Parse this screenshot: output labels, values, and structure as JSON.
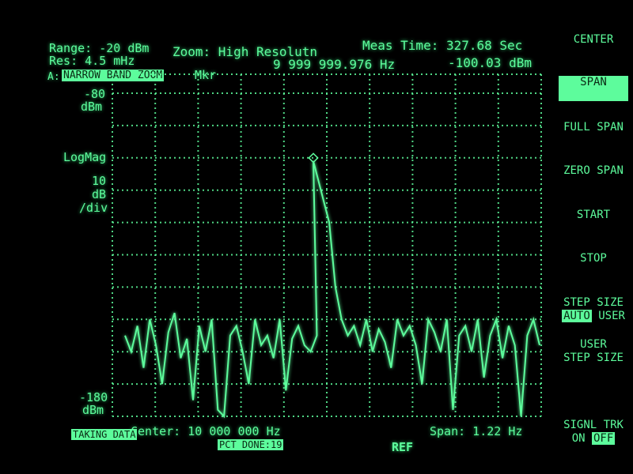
{
  "header": {
    "range": "Range: -20 dBm",
    "res": "Res: 4.5 mHz",
    "zoom": "Zoom: High Resolutn",
    "meas_time": "Meas Time: 327.68 Sec",
    "marker_freq": "9 999 999.976 Hz",
    "marker_level": "-100.03 dBm",
    "trace_prefix": "A:",
    "trace_label": "NARROW BAND ZOOM",
    "mkr_label": "Mkr"
  },
  "yaxis": {
    "top_value": "-80",
    "top_unit": "dBm",
    "scale_type": "LogMag",
    "scale_num": "10",
    "scale_unit": "dB",
    "scale_div": "/div",
    "bottom_value": "-180",
    "bottom_unit": "dBm"
  },
  "footer": {
    "center": "Center: 10 000 000 Hz",
    "span": "Span: 1.22 Hz",
    "status": "TAKING DATA",
    "pct_done": "PCT DONE:19",
    "ref": "REF"
  },
  "softkeys": [
    {
      "label": "CENTER"
    },
    {
      "label": "SPAN",
      "selected": true
    },
    {
      "label": "FULL SPAN"
    },
    {
      "label": "ZERO SPAN"
    },
    {
      "label": "START"
    },
    {
      "label": "STOP"
    },
    {
      "label": "STEP SIZE",
      "option_a": "AUTO",
      "option_b": "USER",
      "active": "AUTO"
    },
    {
      "label_line1": "USER",
      "label_line2": "STEP SIZE"
    },
    {
      "label": "SIGNL TRK",
      "option_a": "ON",
      "option_b": "OFF",
      "active": "OFF"
    }
  ],
  "colors": {
    "phosphor": "#5dfc9c",
    "background": "#000000"
  },
  "chart_data": {
    "type": "line",
    "xlabel": "",
    "ylabel": "",
    "x_center_hz": 10000000,
    "x_span_hz": 1.22,
    "ylim": [
      -180,
      -80
    ],
    "y_scale": "log magnitude, 10 dB/div",
    "grid": true,
    "marker": {
      "x_hz": 9999999.976,
      "y_dbm": -100.03
    },
    "y_values_dbm": [
      -155,
      -160,
      -152,
      -165,
      -150,
      -158,
      -170,
      -154,
      -148,
      -162,
      -156,
      -175,
      -152,
      -160,
      -150,
      -178,
      -180,
      -155,
      -152,
      -160,
      -170,
      -150,
      -158,
      -155,
      -162,
      -150,
      -172,
      -156,
      -152,
      -158,
      -160,
      -155,
      -101,
      -120,
      -140,
      -150,
      -155,
      -152,
      -158,
      -150,
      -160,
      -153,
      -157,
      -165,
      -150,
      -155,
      -152,
      -158,
      -170,
      -150,
      -154,
      -160,
      -150,
      -178,
      -155,
      -152,
      -160,
      -150,
      -168,
      -155,
      -150,
      -162,
      -152,
      -158,
      -180,
      -155,
      -150,
      -158
    ]
  }
}
